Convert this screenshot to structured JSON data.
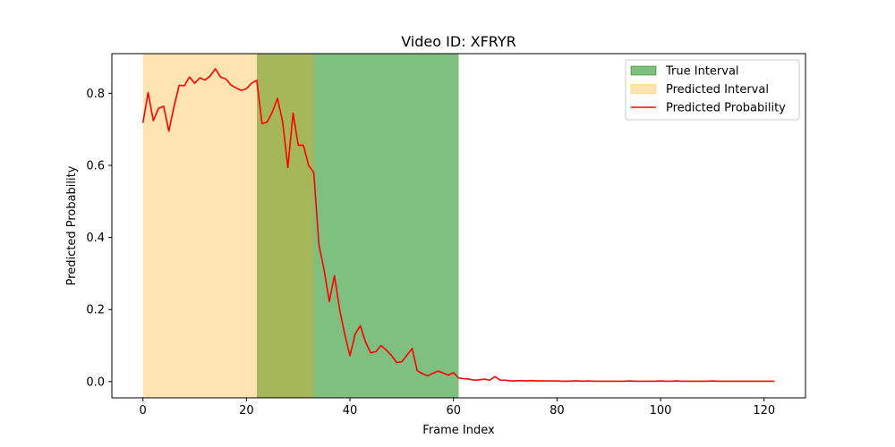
{
  "chart_data": {
    "type": "line",
    "title": "Video ID: XFRYR",
    "xlabel": "Frame Index",
    "ylabel": "Predicted Probability",
    "xlim": [
      -6,
      128
    ],
    "ylim": [
      -0.045,
      0.91
    ],
    "xticks": [
      0,
      20,
      40,
      60,
      80,
      100,
      120
    ],
    "yticks": [
      0.0,
      0.2,
      0.4,
      0.6,
      0.8
    ],
    "grid": false,
    "legend_position": "top-right",
    "intervals": [
      {
        "name": "True Interval",
        "start": 22,
        "end": 61,
        "color": "#008000",
        "alpha": 0.5
      },
      {
        "name": "Predicted Interval",
        "start": 0,
        "end": 33,
        "color": "#FFA500",
        "alpha": 0.3
      }
    ],
    "series": [
      {
        "name": "Predicted Probability",
        "color": "#ff0000",
        "x": [
          0,
          1,
          2,
          3,
          4,
          5,
          6,
          7,
          8,
          9,
          10,
          11,
          12,
          13,
          14,
          15,
          16,
          17,
          18,
          19,
          20,
          21,
          22,
          23,
          24,
          25,
          26,
          27,
          28,
          29,
          30,
          31,
          32,
          33,
          34,
          35,
          36,
          37,
          38,
          39,
          40,
          41,
          42,
          43,
          44,
          45,
          46,
          47,
          48,
          49,
          50,
          51,
          52,
          53,
          54,
          55,
          56,
          57,
          58,
          59,
          60,
          61,
          62,
          63,
          64,
          65,
          66,
          67,
          68,
          69,
          70,
          71,
          72,
          73,
          74,
          75,
          76,
          77,
          78,
          79,
          80,
          81,
          82,
          83,
          84,
          85,
          86,
          87,
          88,
          89,
          90,
          91,
          92,
          93,
          94,
          95,
          96,
          97,
          98,
          99,
          100,
          101,
          102,
          103,
          104,
          105,
          106,
          107,
          108,
          109,
          110,
          111,
          112,
          113,
          114,
          115,
          116,
          117,
          118,
          119,
          120,
          121,
          122
        ],
        "y": [
          0.718,
          0.802,
          0.724,
          0.758,
          0.764,
          0.695,
          0.763,
          0.822,
          0.821,
          0.845,
          0.828,
          0.843,
          0.837,
          0.848,
          0.868,
          0.845,
          0.84,
          0.823,
          0.815,
          0.808,
          0.813,
          0.828,
          0.836,
          0.716,
          0.72,
          0.748,
          0.786,
          0.72,
          0.594,
          0.745,
          0.656,
          0.656,
          0.6,
          0.58,
          0.38,
          0.31,
          0.222,
          0.294,
          0.2,
          0.13,
          0.072,
          0.132,
          0.155,
          0.11,
          0.08,
          0.083,
          0.1,
          0.088,
          0.073,
          0.053,
          0.055,
          0.073,
          0.092,
          0.03,
          0.022,
          0.016,
          0.023,
          0.029,
          0.024,
          0.018,
          0.025,
          0.01,
          0.008,
          0.007,
          0.004,
          0.005,
          0.007,
          0.004,
          0.014,
          0.004,
          0.004,
          0.002,
          0.002,
          0.003,
          0.002,
          0.003,
          0.002,
          0.002,
          0.002,
          0.002,
          0.002,
          0.001,
          0.001,
          0.002,
          0.002,
          0.001,
          0.002,
          0.001,
          0.001,
          0.001,
          0.001,
          0.001,
          0.001,
          0.001,
          0.002,
          0.001,
          0.001,
          0.001,
          0.001,
          0.001,
          0.002,
          0.001,
          0.001,
          0.002,
          0.001,
          0.001,
          0.001,
          0.001,
          0.001,
          0.001,
          0.002,
          0.001,
          0.001,
          0.001,
          0.001,
          0.001,
          0.001,
          0.001,
          0.001,
          0.001,
          0.001,
          0.001,
          0.001
        ]
      }
    ]
  }
}
